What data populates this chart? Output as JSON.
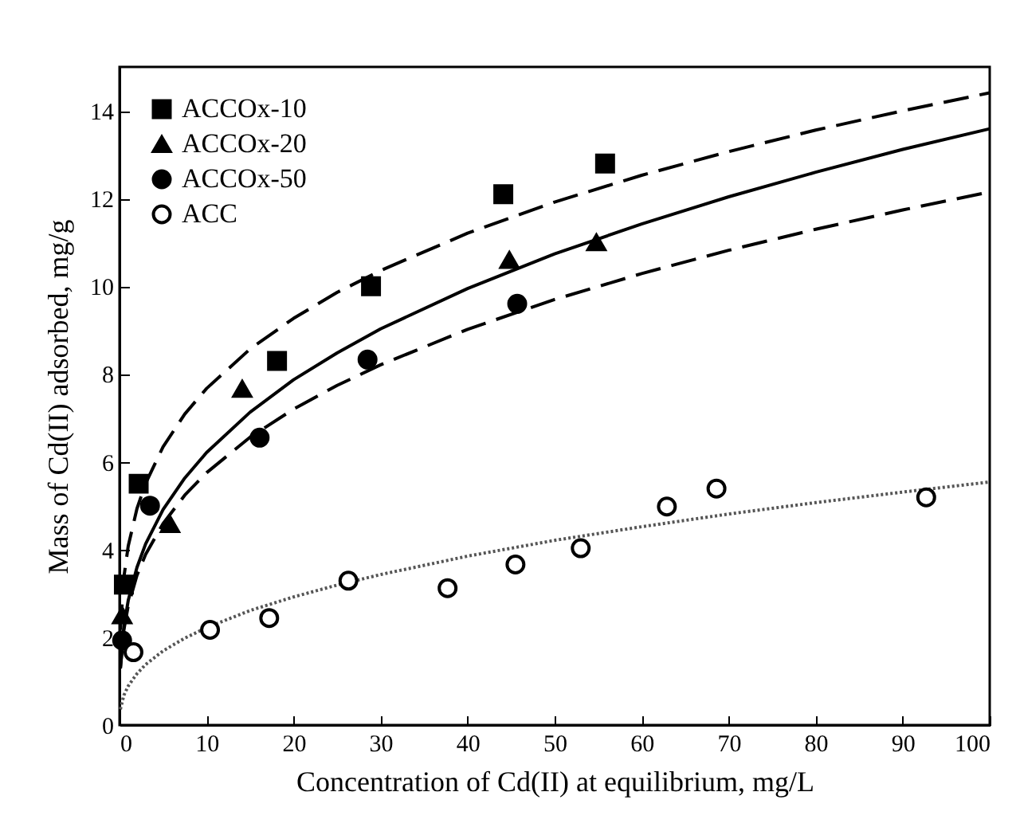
{
  "chart_data": {
    "type": "scatter",
    "xlabel": "Concentration of Cd(II) at equilibrium, mg/L",
    "ylabel": "Mass of Cd(II) adsorbed, mg/g",
    "xlim": [
      0,
      100
    ],
    "xticks": [
      0,
      10,
      20,
      30,
      40,
      50,
      60,
      70,
      80,
      90,
      100
    ],
    "ylim": [
      0,
      15
    ],
    "yticks": [
      0,
      2,
      4,
      6,
      8,
      10,
      12,
      14
    ],
    "legend": "top left",
    "grid": false,
    "series": [
      {
        "name": "ACCOx-10",
        "type": "scatter",
        "marker": "square",
        "color": "#000000",
        "x": [
          0.5,
          2.2,
          18.1,
          28.9,
          44.1,
          55.8
        ],
        "values": [
          3.2,
          5.5,
          8.3,
          10.0,
          12.1,
          12.8
        ]
      },
      {
        "name": "ACCOx-20",
        "type": "scatter",
        "marker": "triangle",
        "color": "#000000",
        "x": [
          0.3,
          5.8,
          14.1,
          44.8,
          54.8
        ],
        "values": [
          2.5,
          4.58,
          7.66,
          10.6,
          11.0
        ]
      },
      {
        "name": "ACCOx-50",
        "type": "scatter",
        "marker": "circle",
        "color": "#000000",
        "x": [
          0.3,
          3.5,
          16.1,
          28.5,
          45.7
        ],
        "values": [
          1.93,
          5.0,
          6.55,
          8.33,
          9.6
        ]
      },
      {
        "name": "ACC",
        "type": "scatter",
        "marker": "circle",
        "color": "#ffffff",
        "x": [
          1.6,
          10.4,
          17.2,
          26.3,
          37.7,
          45.5,
          53.0,
          62.9,
          68.6,
          92.7
        ],
        "values": [
          1.66,
          2.17,
          2.44,
          3.29,
          3.12,
          3.66,
          4.03,
          4.98,
          5.39,
          5.19
        ]
      },
      {
        "type": "line",
        "line_style": "dashed",
        "color": "#000000",
        "x": [
          0.1,
          0.5,
          1,
          2,
          3,
          5,
          7.5,
          10,
          15,
          20,
          25,
          30,
          40,
          50,
          60,
          70,
          80,
          90,
          100
        ],
        "values": [
          2.17,
          3.37,
          4.08,
          4.93,
          5.51,
          6.34,
          7.09,
          7.67,
          8.57,
          9.27,
          9.86,
          10.36,
          11.21,
          11.92,
          12.53,
          13.07,
          13.56,
          14.0,
          14.41
        ]
      },
      {
        "type": "line",
        "line_style": "solid",
        "color": "#000000",
        "x": [
          0.1,
          0.5,
          1,
          2,
          3,
          5,
          7.5,
          10,
          15,
          20,
          25,
          30,
          40,
          50,
          60,
          70,
          80,
          90,
          100
        ],
        "values": [
          1.3,
          2.24,
          2.84,
          3.59,
          4.13,
          4.91,
          5.63,
          6.21,
          7.13,
          7.87,
          8.48,
          9.03,
          9.95,
          10.74,
          11.42,
          12.04,
          12.6,
          13.12,
          13.59
        ]
      },
      {
        "type": "line",
        "line_style": "dashed",
        "color": "#000000",
        "x": [
          0.1,
          0.5,
          1,
          2,
          3,
          5,
          7.5,
          10,
          15,
          20,
          25,
          30,
          40,
          50,
          60,
          70,
          80,
          90,
          100
        ],
        "values": [
          1.29,
          2.17,
          2.72,
          3.41,
          3.89,
          4.59,
          5.24,
          5.75,
          6.56,
          7.2,
          7.74,
          8.21,
          9.02,
          9.7,
          10.29,
          10.82,
          11.3,
          11.74,
          12.15
        ]
      },
      {
        "type": "line",
        "line_style": "dotted",
        "color": "#555555",
        "x": [
          0.1,
          0.5,
          1,
          2,
          3,
          5,
          7.5,
          10,
          15,
          20,
          25,
          30,
          40,
          50,
          60,
          70,
          80,
          90,
          100
        ],
        "values": [
          0.36,
          0.68,
          0.89,
          1.17,
          1.38,
          1.69,
          1.98,
          2.22,
          2.61,
          2.92,
          3.19,
          3.43,
          3.85,
          4.21,
          4.52,
          4.81,
          5.07,
          5.31,
          5.54
        ]
      }
    ]
  }
}
